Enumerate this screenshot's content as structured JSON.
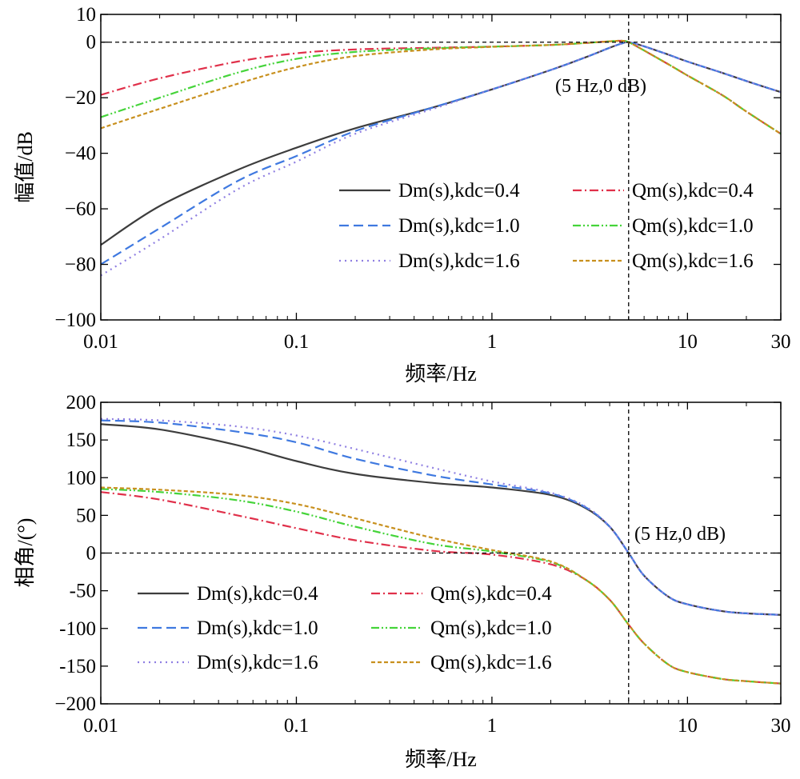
{
  "chart_data": [
    {
      "type": "line",
      "panel": "magnitude",
      "xscale": "log",
      "xlim": [
        0.01,
        30
      ],
      "ylim": [
        -100,
        10
      ],
      "xticks": [
        0.01,
        0.1,
        1,
        10,
        30
      ],
      "xtick_labels": [
        "0.01",
        "0.1",
        "1",
        "10",
        "30"
      ],
      "yticks": [
        10,
        0,
        -20,
        -40,
        -60,
        -80,
        -100
      ],
      "ytick_labels": [
        "10",
        "0",
        "−20",
        "−40",
        "−60",
        "−80",
        "−100"
      ],
      "xlabel": "频率/Hz",
      "ylabel": "幅值/dB",
      "grid": false,
      "legend_position": "lower-right",
      "reference_lines": {
        "horizontal_y": 0,
        "vertical_x": 5
      },
      "annotation": {
        "text": "(5 Hz,0 dB)",
        "x": 5,
        "y": -12
      },
      "x": [
        0.01,
        0.02,
        0.05,
        0.1,
        0.2,
        0.5,
        1,
        2,
        3,
        4,
        4.6,
        5,
        6,
        8,
        10,
        15,
        20,
        30
      ],
      "series": [
        {
          "name": "Dm(s),kdc=0.4",
          "color": "#3d3d3d",
          "dash": "solid",
          "values": [
            -73,
            -59,
            -46,
            -38,
            -31,
            -23.5,
            -17,
            -10,
            -5.5,
            -2,
            -0.5,
            0,
            -1.5,
            -4.5,
            -7,
            -11,
            -14,
            -18
          ]
        },
        {
          "name": "Dm(s),kdc=1.0",
          "color": "#3f79e0",
          "dash": "dashed",
          "values": [
            -80,
            -67,
            -50,
            -41,
            -32,
            -23.5,
            -17,
            -10,
            -5.5,
            -2,
            -0.5,
            0,
            -1.5,
            -4.5,
            -7,
            -11,
            -14,
            -18
          ]
        },
        {
          "name": "Dm(s),kdc=1.6",
          "color": "#8f7fe2",
          "dash": "dotted",
          "values": [
            -84,
            -71,
            -53,
            -43,
            -33,
            -24,
            -17,
            -10,
            -5.5,
            -2,
            -0.5,
            0,
            -1.5,
            -4.5,
            -7,
            -11,
            -14,
            -18
          ]
        },
        {
          "name": "Qm(s),kdc=0.4",
          "color": "#e0304a",
          "dash": "dashdot",
          "values": [
            -19,
            -13,
            -7,
            -4,
            -2.6,
            -2,
            -1.6,
            -1,
            -0.3,
            0.3,
            0.5,
            0,
            -3,
            -8,
            -12,
            -19,
            -25,
            -33
          ]
        },
        {
          "name": "Qm(s),kdc=1.0",
          "color": "#45d43a",
          "dash": "dashdotdot",
          "values": [
            -27,
            -20,
            -11,
            -6,
            -3.5,
            -2.2,
            -1.6,
            -1,
            -0.3,
            0.3,
            0.5,
            0,
            -3,
            -8,
            -12,
            -19,
            -25,
            -33
          ]
        },
        {
          "name": "Qm(s),kdc=1.6",
          "color": "#c8901e",
          "dash": "shortdash",
          "values": [
            -31,
            -24,
            -15,
            -9,
            -5,
            -2.6,
            -1.7,
            -1,
            -0.3,
            0.3,
            0.5,
            0,
            -3,
            -8,
            -12,
            -19,
            -25,
            -33
          ]
        }
      ]
    },
    {
      "type": "line",
      "panel": "phase",
      "xscale": "log",
      "xlim": [
        0.01,
        30
      ],
      "ylim": [
        -200,
        200
      ],
      "xticks": [
        0.01,
        0.1,
        1,
        10,
        30
      ],
      "xtick_labels": [
        "0.01",
        "0.1",
        "1",
        "10",
        "30"
      ],
      "yticks": [
        200,
        150,
        100,
        50,
        0,
        -50,
        -100,
        -150,
        -200
      ],
      "ytick_labels": [
        "200",
        "150",
        "100",
        "50",
        "0",
        "-50",
        "-100",
        "-150",
        "−200"
      ],
      "xlabel": "频率/Hz",
      "ylabel": "相角/(°)",
      "grid": false,
      "legend_position": "lower-left",
      "reference_lines": {
        "horizontal_y": 0,
        "vertical_x": 5
      },
      "annotation": {
        "text": "(5 Hz,0 dB)",
        "x": 5,
        "y": 20
      },
      "x": [
        0.01,
        0.02,
        0.05,
        0.1,
        0.2,
        0.5,
        1,
        2,
        3,
        4,
        5,
        6,
        8,
        10,
        15,
        20,
        30
      ],
      "series": [
        {
          "name": "Dm(s),kdc=0.4",
          "color": "#3d3d3d",
          "dash": "solid",
          "values": [
            171,
            164,
            143,
            122,
            105,
            93,
            87,
            77,
            60,
            35,
            0,
            -30,
            -58,
            -68,
            -77,
            -80,
            -82
          ]
        },
        {
          "name": "Dm(s),kdc=1.0",
          "color": "#3f79e0",
          "dash": "dashed",
          "values": [
            176,
            173,
            161,
            147,
            125,
            103,
            91,
            79,
            61,
            35,
            0,
            -30,
            -58,
            -68,
            -77,
            -80,
            -82
          ]
        },
        {
          "name": "Dm(s),kdc=1.6",
          "color": "#8f7fe2",
          "dash": "dotted",
          "values": [
            178,
            176,
            168,
            156,
            138,
            113,
            95,
            80,
            62,
            35,
            0,
            -30,
            -58,
            -68,
            -77,
            -80,
            -82
          ]
        },
        {
          "name": "Qm(s),kdc=0.4",
          "color": "#e0304a",
          "dash": "dashdot",
          "values": [
            81,
            71,
            50,
            33,
            17,
            3,
            -2,
            -15,
            -35,
            -62,
            -95,
            -120,
            -148,
            -158,
            -167,
            -170,
            -173
          ]
        },
        {
          "name": "Qm(s),kdc=1.0",
          "color": "#45d43a",
          "dash": "dashdotdot",
          "values": [
            85,
            81,
            70,
            55,
            35,
            12,
            2,
            -12,
            -35,
            -62,
            -95,
            -120,
            -148,
            -158,
            -167,
            -170,
            -173
          ]
        },
        {
          "name": "Qm(s),kdc=1.6",
          "color": "#c8901e",
          "dash": "shortdash",
          "values": [
            87,
            84,
            77,
            65,
            46,
            20,
            4,
            -11,
            -35,
            -62,
            -95,
            -120,
            -148,
            -158,
            -167,
            -170,
            -173
          ]
        }
      ]
    }
  ]
}
